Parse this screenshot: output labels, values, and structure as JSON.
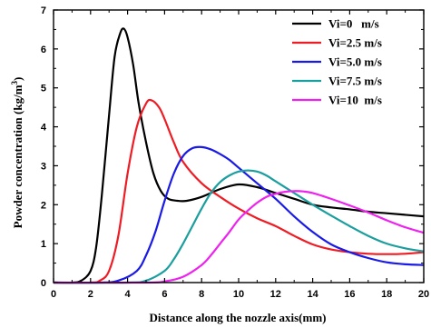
{
  "chart_data": {
    "type": "line",
    "title": "",
    "xlabel": "Distance along the nozzle axis(mm)",
    "ylabel": "Powder concentration (kg/m3)",
    "ylabel_main": "Powder concentration (kg/m",
    "ylabel_sup": "3",
    "ylabel_close": ")",
    "xlim": [
      0,
      20
    ],
    "ylim": [
      0,
      7
    ],
    "xticks": [
      0,
      2,
      4,
      6,
      8,
      10,
      12,
      14,
      16,
      18,
      20
    ],
    "yticks": [
      0,
      1,
      2,
      3,
      4,
      5,
      6,
      7
    ],
    "grid": false,
    "legend_position": "top-right",
    "series": [
      {
        "name": "Vi=0   m/s",
        "color": "#000000",
        "x": [
          0,
          1,
          1.5,
          2,
          2.3,
          2.6,
          3,
          3.3,
          3.6,
          3.8,
          4.0,
          4.3,
          4.6,
          5,
          5.4,
          5.8,
          6.2,
          6.7,
          7.2,
          8,
          9,
          10,
          11,
          12,
          13,
          14,
          15,
          16,
          17,
          18,
          19,
          20
        ],
        "y": [
          0,
          0,
          0.05,
          0.3,
          0.9,
          2.2,
          4.3,
          5.8,
          6.4,
          6.52,
          6.3,
          5.6,
          4.6,
          3.6,
          2.8,
          2.35,
          2.15,
          2.1,
          2.1,
          2.2,
          2.4,
          2.52,
          2.45,
          2.3,
          2.15,
          2.0,
          1.93,
          1.88,
          1.82,
          1.78,
          1.74,
          1.7
        ]
      },
      {
        "name": "Vi=2.5 m/s",
        "color": "#ee1c24",
        "x": [
          0,
          2,
          2.5,
          3,
          3.5,
          4,
          4.5,
          5,
          5.3,
          5.7,
          6,
          6.5,
          7,
          8,
          9,
          10,
          11,
          12,
          13,
          14,
          15,
          16,
          17,
          18,
          19,
          20
        ],
        "y": [
          0,
          0,
          0.05,
          0.3,
          1.2,
          2.8,
          4.0,
          4.6,
          4.68,
          4.5,
          4.2,
          3.6,
          3.1,
          2.55,
          2.2,
          1.9,
          1.65,
          1.45,
          1.2,
          0.98,
          0.85,
          0.78,
          0.74,
          0.73,
          0.74,
          0.78
        ]
      },
      {
        "name": "Vi=5.0 m/s",
        "color": "#1a1ae6",
        "x": [
          0,
          2.5,
          3.5,
          4.5,
          5,
          5.5,
          6,
          6.5,
          7,
          7.5,
          8,
          8.5,
          9,
          9.5,
          10,
          11,
          12,
          13,
          14,
          15,
          16,
          17,
          18,
          19,
          20
        ],
        "y": [
          0,
          0,
          0.05,
          0.3,
          0.7,
          1.3,
          2.1,
          2.8,
          3.25,
          3.45,
          3.48,
          3.42,
          3.3,
          3.15,
          2.95,
          2.55,
          2.15,
          1.7,
          1.3,
          0.98,
          0.78,
          0.63,
          0.52,
          0.47,
          0.45
        ]
      },
      {
        "name": "Vi=7.5 m/s",
        "color": "#1a9e9e",
        "x": [
          0,
          4,
          5,
          6,
          6.5,
          7,
          7.5,
          8,
          8.5,
          9,
          9.5,
          10,
          10.5,
          11,
          11.5,
          12,
          13,
          14,
          15,
          16,
          17,
          18,
          19,
          20
        ],
        "y": [
          0,
          0,
          0.05,
          0.3,
          0.6,
          1.0,
          1.45,
          1.9,
          2.3,
          2.58,
          2.75,
          2.85,
          2.88,
          2.85,
          2.75,
          2.6,
          2.3,
          2.0,
          1.72,
          1.45,
          1.2,
          1.0,
          0.88,
          0.8
        ]
      },
      {
        "name": "Vi=10  m/s",
        "color": "#ee22ee",
        "x": [
          0,
          5,
          6,
          7,
          8,
          8.5,
          9,
          9.5,
          10,
          10.5,
          11,
          11.5,
          12,
          12.5,
          13,
          13.5,
          14,
          15,
          16,
          17,
          18,
          19,
          20
        ],
        "y": [
          0,
          0,
          0.03,
          0.15,
          0.45,
          0.7,
          1.0,
          1.3,
          1.62,
          1.85,
          2.05,
          2.2,
          2.28,
          2.33,
          2.35,
          2.34,
          2.3,
          2.15,
          1.98,
          1.8,
          1.6,
          1.42,
          1.28
        ]
      }
    ]
  }
}
